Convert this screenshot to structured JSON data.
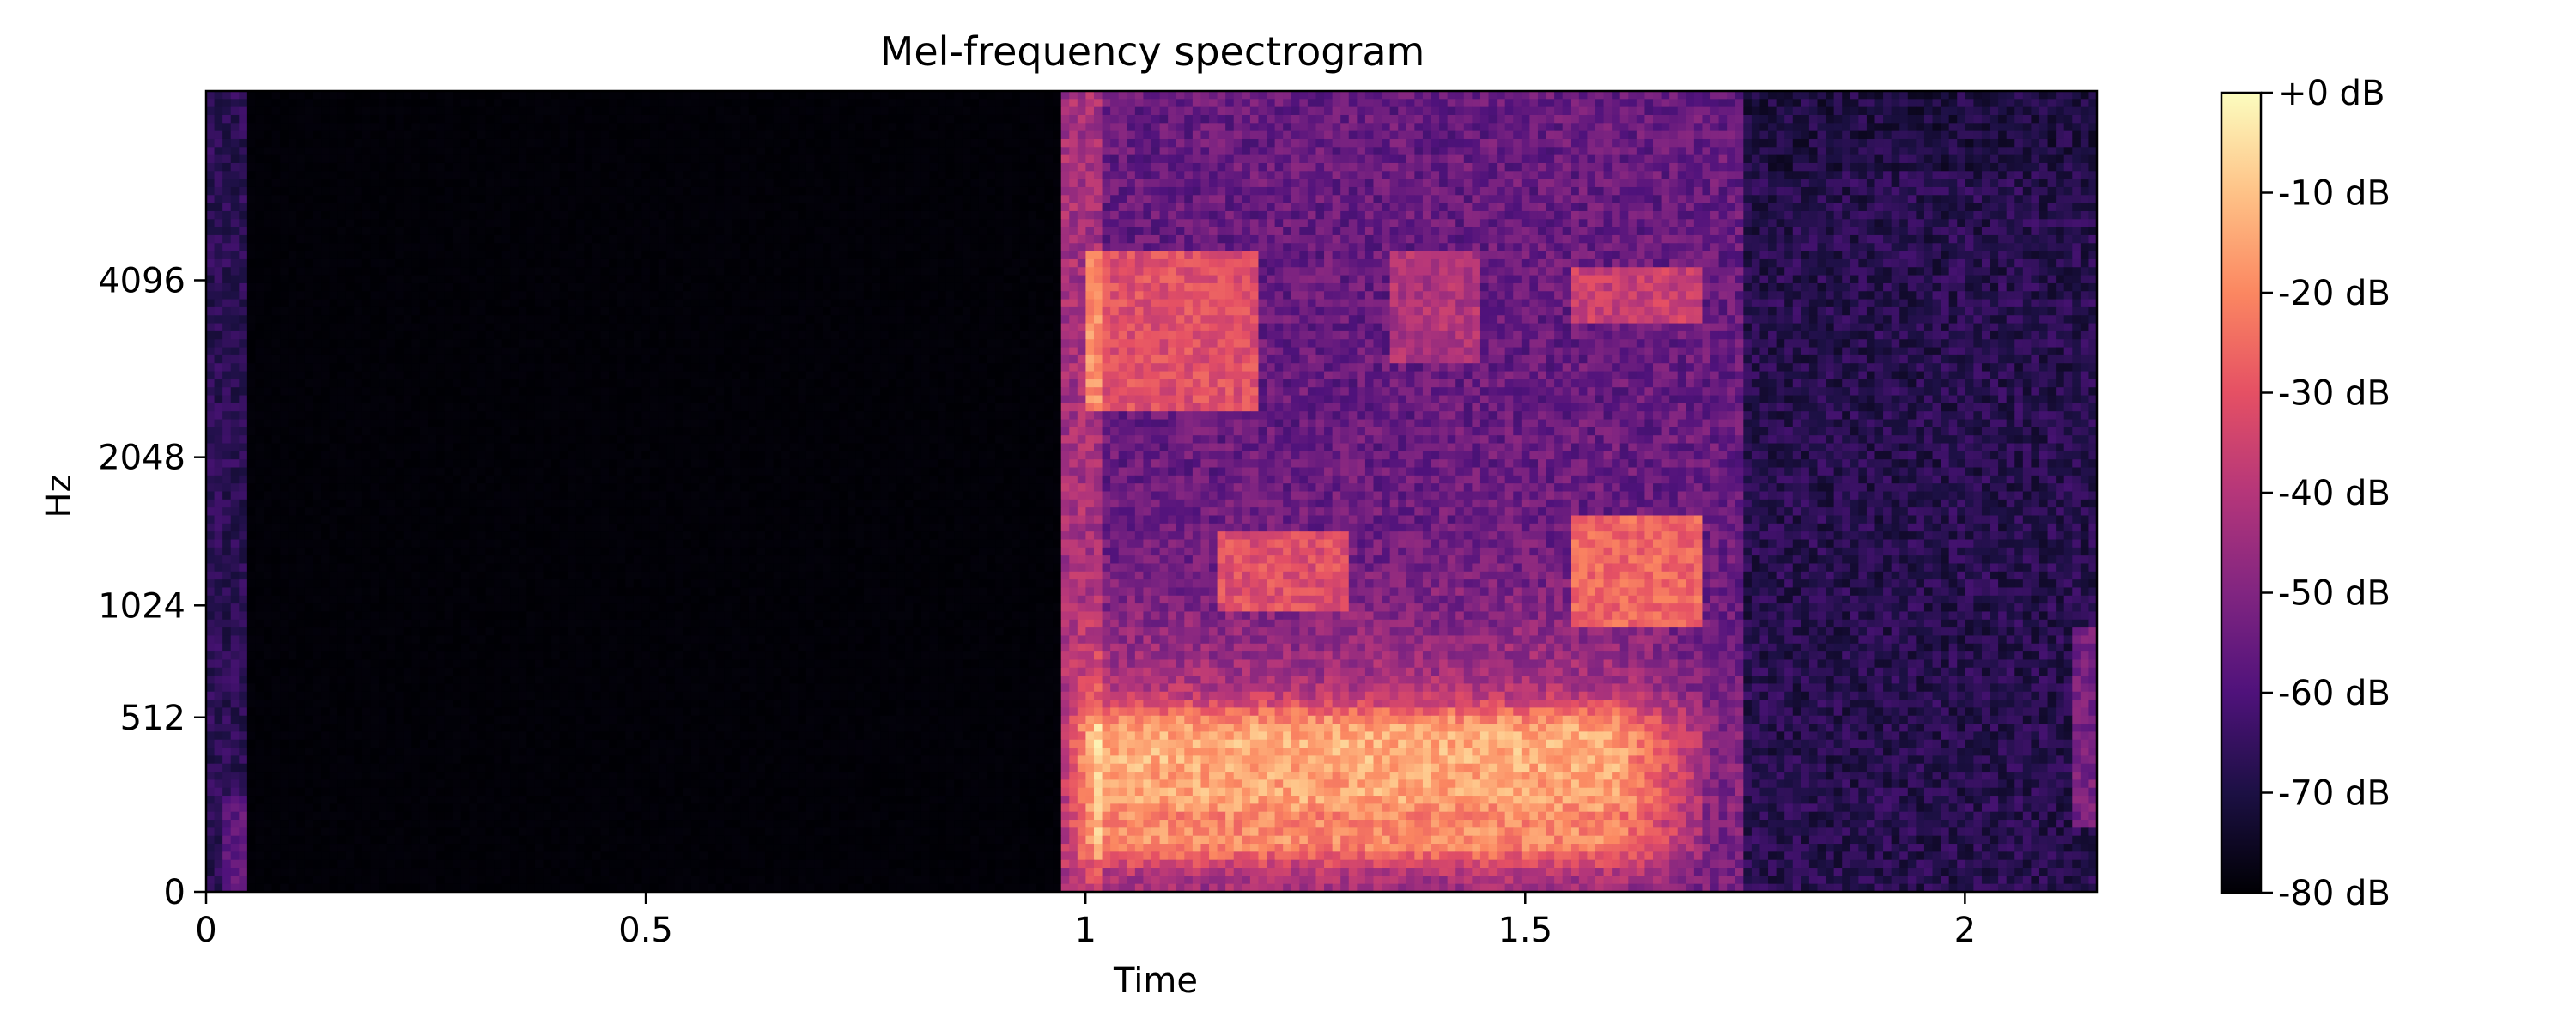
{
  "chart_data": {
    "type": "heatmap",
    "title": "Mel-frequency spectrogram",
    "xlabel": "Time",
    "ylabel": "Hz",
    "x_ticks": [
      {
        "value": 0,
        "label": "0"
      },
      {
        "value": 0.5,
        "label": "0.5"
      },
      {
        "value": 1,
        "label": "1"
      },
      {
        "value": 1.5,
        "label": "1.5"
      },
      {
        "value": 2,
        "label": "2"
      }
    ],
    "y_ticks": [
      {
        "value": 0,
        "label": "0"
      },
      {
        "value": 512,
        "label": "512"
      },
      {
        "value": 1024,
        "label": "1024"
      },
      {
        "value": 2048,
        "label": "2048"
      },
      {
        "value": 4096,
        "label": "4096"
      }
    ],
    "xlim": [
      0,
      2.15
    ],
    "y_scale": "mel",
    "ylim_hz": [
      0,
      8000
    ],
    "colormap": "magma",
    "colorbar": {
      "range_db": [
        -80,
        0
      ],
      "ticks": [
        {
          "value": 0,
          "label": "+0 dB"
        },
        {
          "value": -10,
          "label": "-10 dB"
        },
        {
          "value": -20,
          "label": "-20 dB"
        },
        {
          "value": -30,
          "label": "-30 dB"
        },
        {
          "value": -40,
          "label": "-40 dB"
        },
        {
          "value": -50,
          "label": "-50 dB"
        },
        {
          "value": -60,
          "label": "-60 dB"
        },
        {
          "value": -70,
          "label": "-70 dB"
        },
        {
          "value": -80,
          "label": "-80 dB"
        }
      ]
    },
    "silence_interval": [
      0.05,
      0.97
    ],
    "speech_interval": [
      0.97,
      1.75
    ],
    "harmonic_bands_hz": [
      120,
      240,
      360,
      480
    ],
    "formant_regions": [
      {
        "t": [
          1.0,
          1.2
        ],
        "hz": [
          2500,
          4500
        ],
        "db": -25
      },
      {
        "t": [
          1.35,
          1.45
        ],
        "hz": [
          3000,
          4500
        ],
        "db": -35
      },
      {
        "t": [
          1.55,
          1.7
        ],
        "hz": [
          3500,
          4300
        ],
        "db": -30
      },
      {
        "t": [
          1.55,
          1.7
        ],
        "hz": [
          900,
          1600
        ],
        "db": -20
      },
      {
        "t": [
          1.15,
          1.3
        ],
        "hz": [
          1000,
          1500
        ],
        "db": -25
      }
    ],
    "colors": {
      "magma_stops": [
        "#000004",
        "#1c1044",
        "#4f127b",
        "#812581",
        "#b5367a",
        "#e55064",
        "#fb8761",
        "#fec287",
        "#fcfdbf"
      ]
    }
  }
}
